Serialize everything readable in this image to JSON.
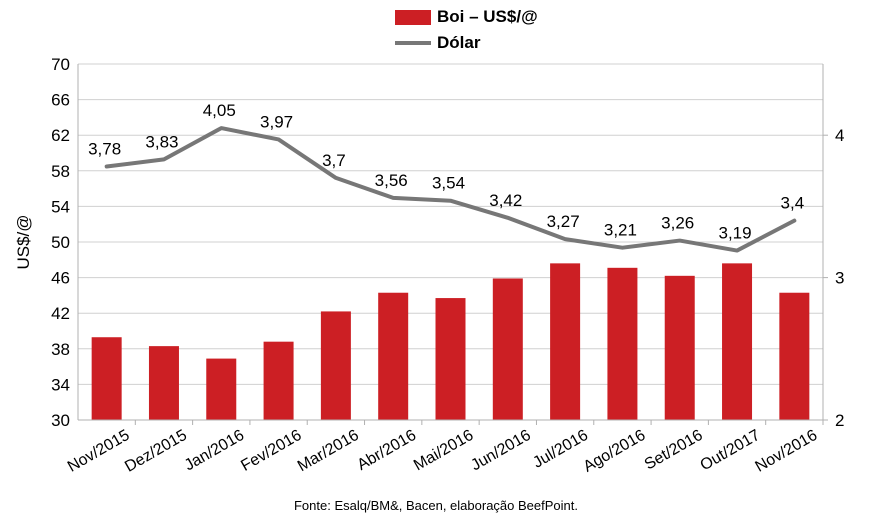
{
  "chart_data": {
    "type": "bar+line",
    "categories": [
      "Nov/2015",
      "Dez/2015",
      "Jan/2016",
      "Fev/2016",
      "Mar/2016",
      "Abr/2016",
      "Mai/2016",
      "Jun/2016",
      "Jul/2016",
      "Ago/2016",
      "Set/2016",
      "Out/2017",
      "Nov/2016"
    ],
    "series": [
      {
        "name": "Boi – US$/@",
        "type": "bar",
        "axis": "left",
        "color": "#cc1f24",
        "values": [
          39.3,
          38.3,
          36.9,
          38.8,
          42.2,
          44.3,
          43.7,
          45.9,
          47.6,
          47.1,
          46.2,
          47.6,
          44.3
        ]
      },
      {
        "name": "Dólar",
        "type": "line",
        "axis": "right",
        "color": "#777777",
        "values": [
          3.78,
          3.83,
          4.05,
          3.97,
          3.7,
          3.56,
          3.54,
          3.42,
          3.27,
          3.21,
          3.26,
          3.19,
          3.4
        ],
        "labels": [
          "3,78",
          "3,83",
          "4,05",
          "3,97",
          "3,7",
          "3,56",
          "3,54",
          "3,42",
          "3,27",
          "3,21",
          "3,26",
          "3,19",
          "3,4"
        ]
      }
    ],
    "ylabel": "US$/@",
    "ylim": [
      30,
      70
    ],
    "yticks": [
      "30",
      "34",
      "38",
      "42",
      "46",
      "50",
      "54",
      "58",
      "62",
      "66",
      "70"
    ],
    "y2lim": [
      2,
      4.5
    ],
    "y2ticks": [
      "2",
      "3",
      "4"
    ],
    "legend_position": "top-center",
    "source": "Fonte: Esalq/BM&, Bacen, elaboração BeefPoint."
  }
}
